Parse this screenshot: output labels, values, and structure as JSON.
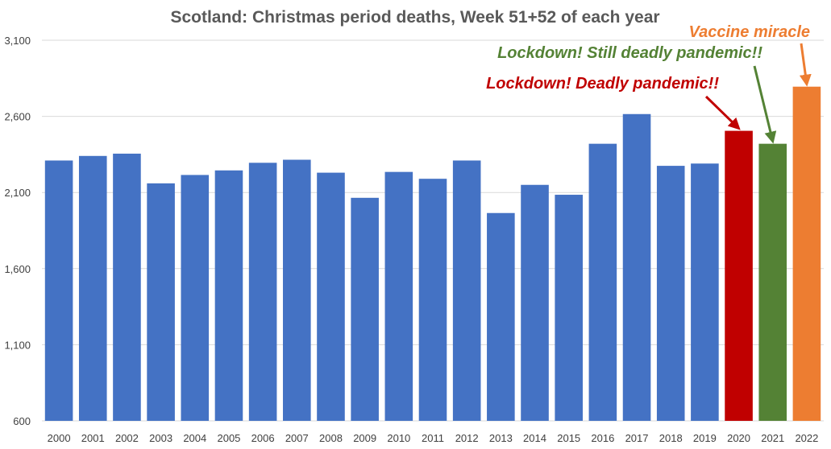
{
  "chart_data": {
    "type": "bar",
    "title": "Scotland: Christmas period deaths, Week 51+52 of each year",
    "xlabel": "",
    "ylabel": "",
    "ylim": [
      600,
      3100
    ],
    "yticks": [
      600,
      1100,
      1600,
      2100,
      2600,
      3100
    ],
    "ytick_labels": [
      "600",
      "1,100",
      "1,600",
      "2,100",
      "2,600",
      "3,100"
    ],
    "grid": true,
    "categories": [
      "2000",
      "2001",
      "2002",
      "2003",
      "2004",
      "2005",
      "2006",
      "2007",
      "2008",
      "2009",
      "2010",
      "2011",
      "2012",
      "2013",
      "2014",
      "2015",
      "2016",
      "2017",
      "2018",
      "2019",
      "2020",
      "2021",
      "2022"
    ],
    "values": [
      2310,
      2340,
      2355,
      2160,
      2215,
      2245,
      2295,
      2315,
      2230,
      2065,
      2235,
      2190,
      2310,
      1965,
      2150,
      2085,
      2420,
      2615,
      2275,
      2290,
      2505,
      2420,
      2795
    ],
    "colors": [
      "#4472c4",
      "#4472c4",
      "#4472c4",
      "#4472c4",
      "#4472c4",
      "#4472c4",
      "#4472c4",
      "#4472c4",
      "#4472c4",
      "#4472c4",
      "#4472c4",
      "#4472c4",
      "#4472c4",
      "#4472c4",
      "#4472c4",
      "#4472c4",
      "#4472c4",
      "#4472c4",
      "#4472c4",
      "#4472c4",
      "#c00000",
      "#548235",
      "#ed7d31"
    ],
    "annotations": [
      {
        "text": "Lockdown! Deadly pandemic!!",
        "color": "#c00000",
        "target": "2020"
      },
      {
        "text": "Lockdown! Still deadly pandemic!!",
        "color": "#548235",
        "target": "2021"
      },
      {
        "text": "Vaccine miracle",
        "color": "#ed7d31",
        "target": "2022"
      }
    ]
  }
}
